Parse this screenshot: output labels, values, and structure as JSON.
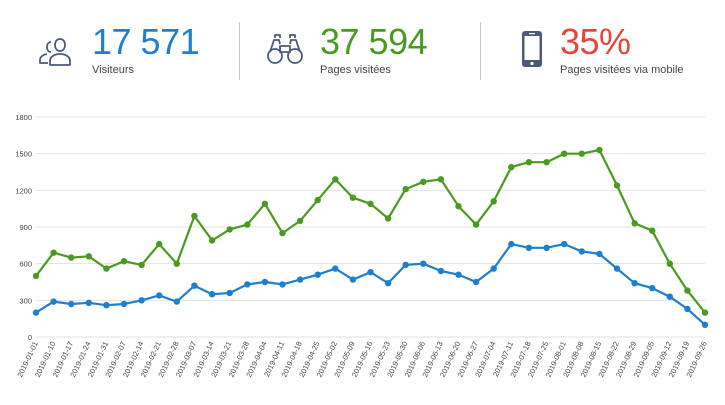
{
  "colors": {
    "blue": "#1e7fcf",
    "green": "#4a9a1f",
    "red": "#e8443a",
    "icon": "#4a5a7a",
    "grid": "#e2e2e2"
  },
  "kpis": [
    {
      "icon": "users-icon",
      "value": "17 571",
      "label": "Visiteurs"
    },
    {
      "icon": "binoculars-icon",
      "value": "37 594",
      "label": "Pages visitées"
    },
    {
      "icon": "mobile-phone-icon",
      "value": "35%",
      "label": "Pages visitées via mobile"
    }
  ],
  "chart_data": {
    "type": "line",
    "x": [
      "2019-01-01",
      "2019-01-10",
      "2019-01-17",
      "2019-01-24",
      "2019-01-31",
      "2019-02-07",
      "2019-02-14",
      "2019-02-21",
      "2019-02-28",
      "2019-03-07",
      "2019-03-14",
      "2019-03-21",
      "2019-03-28",
      "2019-04-04",
      "2019-04-11",
      "2019-04-18",
      "2019-04-25",
      "2019-05-02",
      "2019-05-09",
      "2019-05-16",
      "2019-05-23",
      "2019-05-30",
      "2019-06-06",
      "2019-06-13",
      "2019-06-20",
      "2019-06-27",
      "2019-07-04",
      "2019-07-11",
      "2019-07-18",
      "2019-07-25",
      "2019-08-01",
      "2019-08-08",
      "2019-08-15",
      "2019-08-22",
      "2019-08-29",
      "2019-09-05",
      "2019-09-12",
      "2019-09-19",
      "2019-09-26"
    ],
    "series": [
      {
        "values": [
          500,
          690,
          650,
          660,
          560,
          620,
          590,
          760,
          600,
          990,
          790,
          880,
          920,
          1090,
          850,
          950,
          1120,
          1290,
          1140,
          1090,
          970,
          1210,
          1270,
          1290,
          1070,
          920,
          1110,
          1390,
          1430,
          1430,
          1500,
          1500,
          1530,
          1240,
          930,
          870,
          600,
          380,
          200
        ]
      },
      {
        "values": [
          200,
          290,
          270,
          280,
          260,
          270,
          300,
          340,
          290,
          420,
          350,
          360,
          430,
          450,
          430,
          470,
          510,
          560,
          470,
          530,
          440,
          590,
          600,
          540,
          510,
          450,
          560,
          760,
          730,
          730,
          760,
          700,
          680,
          560,
          440,
          400,
          330,
          230,
          100
        ]
      }
    ],
    "series_colors": [
      "#4a9a1f",
      "#1e7fcf"
    ],
    "ylim": [
      0,
      1800
    ],
    "yticks": [
      "0",
      "300",
      "600",
      "900",
      "1200",
      "1500",
      "1800"
    ],
    "grid": true
  }
}
